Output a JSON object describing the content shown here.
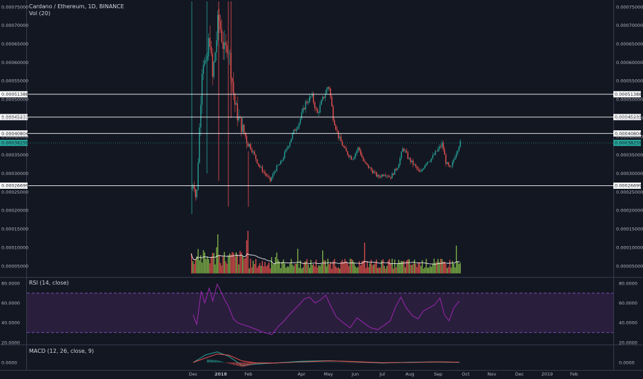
{
  "header": {
    "title": "Cardano / Ethereum, 1D, BINANCE",
    "volume_title": "Vol (20)",
    "rsi_title": "RSI (14, close)",
    "macd_title": "MACD (12, 26, close, 9)"
  },
  "colors": {
    "background": "#131722",
    "up": "#26a69a",
    "down": "#ef5350",
    "vol_up": "#8bc34a",
    "vol_down": "#ef5350",
    "hline": "#ffffff",
    "last_price": "#26a69a",
    "rsi": "#9c27b0",
    "rsi_band": "#2a1e3d",
    "macd": "#26a69a",
    "signal": "#ef5350"
  },
  "chart_data": [
    {
      "type": "candlestick",
      "pane": "price",
      "y_ticks": [
        "0.00075000",
        "0.00070000",
        "0.00065000",
        "0.00060000",
        "0.00055000",
        "0.00050000",
        "0.00045000",
        "0.00040000",
        "0.00035000",
        "0.00030000",
        "0.00025000",
        "0.00020000",
        "0.00015000",
        "0.00010000",
        "0.00005000"
      ],
      "ylim": [
        3e-05,
        0.000765
      ],
      "x_ticks": [
        "Dec",
        "2018",
        "Feb",
        "Apr",
        "May",
        "Jun",
        "Jul",
        "Aug",
        "Sep",
        "Oct",
        "Nov",
        "Dec",
        "2019",
        "Feb"
      ],
      "horizontal_lines": [
        {
          "value": 0.00051388,
          "label": "0.00051388"
        },
        {
          "value": 0.00045233,
          "label": "0.00045233"
        },
        {
          "value": 0.00040804,
          "label": "0.00040804"
        },
        {
          "value": 0.00026699,
          "label": "0.00026699"
        }
      ],
      "last_price": {
        "value": 0.00038259,
        "label": "0.00038259"
      },
      "series": [
        {
          "name": "close",
          "points": [
            [
              "Nov 28",
              0.00026
            ],
            [
              "Dec 1",
              0.00028
            ],
            [
              "Dec 4",
              0.00022
            ],
            [
              "Dec 8",
              0.00045
            ],
            [
              "Dec 11",
              0.00062
            ],
            [
              "Dec 15",
              0.00058
            ],
            [
              "Dec 19",
              0.00068
            ],
            [
              "Dec 22",
              0.00055
            ],
            [
              "Dec 26",
              0.00065
            ],
            [
              "Dec 29",
              0.00072
            ],
            [
              "Jan 1",
              0.00068
            ],
            [
              "Jan 5",
              0.00062
            ],
            [
              "Jan 8",
              0.00066
            ],
            [
              "Jan 12",
              0.00058
            ],
            [
              "Jan 16",
              0.00049
            ],
            [
              "Jan 20",
              0.00045
            ],
            [
              "Jan 25",
              0.00042
            ],
            [
              "Jan 30",
              0.00039
            ],
            [
              "Feb 5",
              0.00036
            ],
            [
              "Feb 12",
              0.00032
            ],
            [
              "Feb 18",
              0.0003
            ],
            [
              "Feb 24",
              0.00028
            ],
            [
              "Mar 1",
              0.00031
            ],
            [
              "Mar 8",
              0.00033
            ],
            [
              "Mar 15",
              0.00037
            ],
            [
              "Mar 22",
              0.00041
            ],
            [
              "Mar 29",
              0.00044
            ],
            [
              "Apr 5",
              0.00049
            ],
            [
              "Apr 12",
              0.00051
            ],
            [
              "Apr 18",
              0.00046
            ],
            [
              "Apr 24",
              0.0005
            ],
            [
              "May 1",
              0.00054
            ],
            [
              "May 6",
              0.00045
            ],
            [
              "May 12",
              0.0004
            ],
            [
              "May 20",
              0.00036
            ],
            [
              "May 28",
              0.00034
            ],
            [
              "Jun 4",
              0.00037
            ],
            [
              "Jun 10",
              0.00033
            ],
            [
              "Jun 18",
              0.00031
            ],
            [
              "Jun 26",
              0.00029
            ],
            [
              "Jul 3",
              0.0003
            ],
            [
              "Jul 10",
              0.00029
            ],
            [
              "Jul 18",
              0.00032
            ],
            [
              "Jul 24",
              0.00037
            ],
            [
              "Jul 30",
              0.00034
            ],
            [
              "Aug 6",
              0.00032
            ],
            [
              "Aug 12",
              0.0003
            ],
            [
              "Aug 18",
              0.00033
            ],
            [
              "Aug 24",
              0.00034
            ],
            [
              "Aug 30",
              0.00036
            ],
            [
              "Sep 5",
              0.00038
            ],
            [
              "Sep 9",
              0.00033
            ],
            [
              "Sep 14",
              0.00031
            ],
            [
              "Sep 19",
              0.00035
            ],
            [
              "Sep 24",
              0.00038259
            ]
          ]
        }
      ]
    },
    {
      "type": "bar",
      "pane": "volume",
      "name": "Vol (20)",
      "y_ticks": [
        "0.00015000",
        "0.00010000",
        "0.00005000"
      ],
      "ylim": [
        3e-05,
        0.000765
      ]
    },
    {
      "type": "line",
      "pane": "rsi",
      "name": "RSI (14, close)",
      "y_ticks": [
        "80.0000",
        "60.0000",
        "40.0000",
        "20.0000"
      ],
      "ylim": [
        20,
        80
      ],
      "bands": [
        30,
        70
      ],
      "points": [
        [
          "Dec 1",
          48
        ],
        [
          "Dec 5",
          38
        ],
        [
          "Dec 10",
          72
        ],
        [
          "Dec 14",
          60
        ],
        [
          "Dec 19",
          75
        ],
        [
          "Dec 23",
          62
        ],
        [
          "Dec 28",
          79
        ],
        [
          "Jan 2",
          70
        ],
        [
          "Jan 6",
          62
        ],
        [
          "Jan 10",
          56
        ],
        [
          "Jan 15",
          44
        ],
        [
          "Jan 20",
          40
        ],
        [
          "Jan 26",
          38
        ],
        [
          "Feb 2",
          36
        ],
        [
          "Feb 10",
          33
        ],
        [
          "Feb 18",
          30
        ],
        [
          "Feb 26",
          28
        ],
        [
          "Mar 5",
          36
        ],
        [
          "Mar 12",
          42
        ],
        [
          "Mar 20",
          50
        ],
        [
          "Mar 28",
          57
        ],
        [
          "Apr 4",
          64
        ],
        [
          "Apr 10",
          66
        ],
        [
          "Apr 16",
          60
        ],
        [
          "Apr 22",
          63
        ],
        [
          "Apr 28",
          68
        ],
        [
          "May 3",
          58
        ],
        [
          "May 10",
          46
        ],
        [
          "May 18",
          40
        ],
        [
          "May 26",
          35
        ],
        [
          "Jun 3",
          45
        ],
        [
          "Jun 10",
          40
        ],
        [
          "Jun 18",
          35
        ],
        [
          "Jun 26",
          33
        ],
        [
          "Jul 4",
          38
        ],
        [
          "Jul 10",
          42
        ],
        [
          "Jul 16",
          56
        ],
        [
          "Jul 22",
          66
        ],
        [
          "Jul 28",
          55
        ],
        [
          "Aug 4",
          47
        ],
        [
          "Aug 10",
          44
        ],
        [
          "Aug 16",
          52
        ],
        [
          "Aug 22",
          55
        ],
        [
          "Aug 28",
          58
        ],
        [
          "Sep 3",
          65
        ],
        [
          "Sep 8",
          48
        ],
        [
          "Sep 13",
          42
        ],
        [
          "Sep 18",
          55
        ],
        [
          "Sep 24",
          62
        ]
      ]
    },
    {
      "type": "line",
      "pane": "macd",
      "name": "MACD (12, 26, close, 9)",
      "y_ticks": [
        "0.0000"
      ],
      "ylim": [
        -4e-05,
        5e-05
      ],
      "series": [
        {
          "name": "macd",
          "points": [
            [
              "Dec 1",
              0.0
            ],
            [
              "Dec 15",
              2.5e-05
            ],
            [
              "Dec 28",
              3.5e-05
            ],
            [
              "Jan 10",
              2e-05
            ],
            [
              "Jan 25",
              -1e-05
            ],
            [
              "Feb 10",
              -5e-06
            ],
            [
              "Mar 1",
              -2e-06
            ],
            [
              "Apr 1",
              4e-06
            ],
            [
              "May 1",
              6e-06
            ],
            [
              "Jun 1",
              2e-06
            ],
            [
              "Jul 1",
              -2e-06
            ],
            [
              "Aug 1",
              1e-06
            ],
            [
              "Sep 1",
              2e-06
            ],
            [
              "Sep 24",
              1e-06
            ]
          ]
        },
        {
          "name": "signal",
          "points": [
            [
              "Dec 1",
              0.0
            ],
            [
              "Dec 15",
              1.5e-05
            ],
            [
              "Dec 28",
              2.8e-05
            ],
            [
              "Jan 10",
              2.4e-05
            ],
            [
              "Jan 25",
              5e-06
            ],
            [
              "Feb 10",
              -2e-06
            ],
            [
              "Mar 1",
              -2e-06
            ],
            [
              "Apr 1",
              2e-06
            ],
            [
              "May 1",
              5e-06
            ],
            [
              "Jun 1",
              3e-06
            ],
            [
              "Jul 1",
              -1e-06
            ],
            [
              "Aug 1",
              0.0
            ],
            [
              "Sep 1",
              2e-06
            ],
            [
              "Sep 24",
              1e-06
            ]
          ]
        }
      ]
    }
  ]
}
